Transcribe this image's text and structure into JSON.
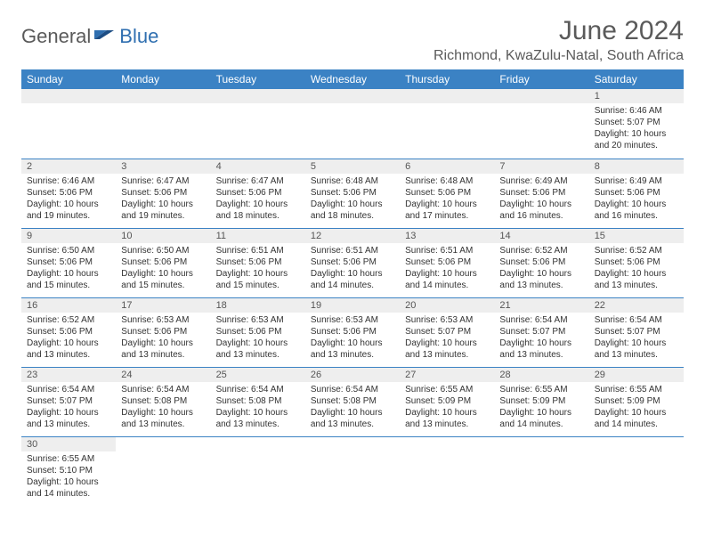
{
  "brand": {
    "part1": "General",
    "part2": "Blue"
  },
  "title": "June 2024",
  "location": "Richmond, KwaZulu-Natal, South Africa",
  "colors": {
    "header_bg": "#3b82c4",
    "header_fg": "#ffffff",
    "daynum_bg": "#eeeeee",
    "row_divider": "#3b82c4",
    "title_color": "#5a5a5a",
    "brand_gray": "#5a5a5a",
    "brand_blue": "#2f6fb0"
  },
  "typography": {
    "title_fontsize": 30,
    "location_fontsize": 16,
    "dayheader_fontsize": 12,
    "daynum_fontsize": 11,
    "body_fontsize": 10
  },
  "day_headers": [
    "Sunday",
    "Monday",
    "Tuesday",
    "Wednesday",
    "Thursday",
    "Friday",
    "Saturday"
  ],
  "weeks": [
    [
      null,
      null,
      null,
      null,
      null,
      null,
      {
        "n": "1",
        "sr": "Sunrise: 6:46 AM",
        "ss": "Sunset: 5:07 PM",
        "d1": "Daylight: 10 hours",
        "d2": "and 20 minutes."
      }
    ],
    [
      {
        "n": "2",
        "sr": "Sunrise: 6:46 AM",
        "ss": "Sunset: 5:06 PM",
        "d1": "Daylight: 10 hours",
        "d2": "and 19 minutes."
      },
      {
        "n": "3",
        "sr": "Sunrise: 6:47 AM",
        "ss": "Sunset: 5:06 PM",
        "d1": "Daylight: 10 hours",
        "d2": "and 19 minutes."
      },
      {
        "n": "4",
        "sr": "Sunrise: 6:47 AM",
        "ss": "Sunset: 5:06 PM",
        "d1": "Daylight: 10 hours",
        "d2": "and 18 minutes."
      },
      {
        "n": "5",
        "sr": "Sunrise: 6:48 AM",
        "ss": "Sunset: 5:06 PM",
        "d1": "Daylight: 10 hours",
        "d2": "and 18 minutes."
      },
      {
        "n": "6",
        "sr": "Sunrise: 6:48 AM",
        "ss": "Sunset: 5:06 PM",
        "d1": "Daylight: 10 hours",
        "d2": "and 17 minutes."
      },
      {
        "n": "7",
        "sr": "Sunrise: 6:49 AM",
        "ss": "Sunset: 5:06 PM",
        "d1": "Daylight: 10 hours",
        "d2": "and 16 minutes."
      },
      {
        "n": "8",
        "sr": "Sunrise: 6:49 AM",
        "ss": "Sunset: 5:06 PM",
        "d1": "Daylight: 10 hours",
        "d2": "and 16 minutes."
      }
    ],
    [
      {
        "n": "9",
        "sr": "Sunrise: 6:50 AM",
        "ss": "Sunset: 5:06 PM",
        "d1": "Daylight: 10 hours",
        "d2": "and 15 minutes."
      },
      {
        "n": "10",
        "sr": "Sunrise: 6:50 AM",
        "ss": "Sunset: 5:06 PM",
        "d1": "Daylight: 10 hours",
        "d2": "and 15 minutes."
      },
      {
        "n": "11",
        "sr": "Sunrise: 6:51 AM",
        "ss": "Sunset: 5:06 PM",
        "d1": "Daylight: 10 hours",
        "d2": "and 15 minutes."
      },
      {
        "n": "12",
        "sr": "Sunrise: 6:51 AM",
        "ss": "Sunset: 5:06 PM",
        "d1": "Daylight: 10 hours",
        "d2": "and 14 minutes."
      },
      {
        "n": "13",
        "sr": "Sunrise: 6:51 AM",
        "ss": "Sunset: 5:06 PM",
        "d1": "Daylight: 10 hours",
        "d2": "and 14 minutes."
      },
      {
        "n": "14",
        "sr": "Sunrise: 6:52 AM",
        "ss": "Sunset: 5:06 PM",
        "d1": "Daylight: 10 hours",
        "d2": "and 13 minutes."
      },
      {
        "n": "15",
        "sr": "Sunrise: 6:52 AM",
        "ss": "Sunset: 5:06 PM",
        "d1": "Daylight: 10 hours",
        "d2": "and 13 minutes."
      }
    ],
    [
      {
        "n": "16",
        "sr": "Sunrise: 6:52 AM",
        "ss": "Sunset: 5:06 PM",
        "d1": "Daylight: 10 hours",
        "d2": "and 13 minutes."
      },
      {
        "n": "17",
        "sr": "Sunrise: 6:53 AM",
        "ss": "Sunset: 5:06 PM",
        "d1": "Daylight: 10 hours",
        "d2": "and 13 minutes."
      },
      {
        "n": "18",
        "sr": "Sunrise: 6:53 AM",
        "ss": "Sunset: 5:06 PM",
        "d1": "Daylight: 10 hours",
        "d2": "and 13 minutes."
      },
      {
        "n": "19",
        "sr": "Sunrise: 6:53 AM",
        "ss": "Sunset: 5:06 PM",
        "d1": "Daylight: 10 hours",
        "d2": "and 13 minutes."
      },
      {
        "n": "20",
        "sr": "Sunrise: 6:53 AM",
        "ss": "Sunset: 5:07 PM",
        "d1": "Daylight: 10 hours",
        "d2": "and 13 minutes."
      },
      {
        "n": "21",
        "sr": "Sunrise: 6:54 AM",
        "ss": "Sunset: 5:07 PM",
        "d1": "Daylight: 10 hours",
        "d2": "and 13 minutes."
      },
      {
        "n": "22",
        "sr": "Sunrise: 6:54 AM",
        "ss": "Sunset: 5:07 PM",
        "d1": "Daylight: 10 hours",
        "d2": "and 13 minutes."
      }
    ],
    [
      {
        "n": "23",
        "sr": "Sunrise: 6:54 AM",
        "ss": "Sunset: 5:07 PM",
        "d1": "Daylight: 10 hours",
        "d2": "and 13 minutes."
      },
      {
        "n": "24",
        "sr": "Sunrise: 6:54 AM",
        "ss": "Sunset: 5:08 PM",
        "d1": "Daylight: 10 hours",
        "d2": "and 13 minutes."
      },
      {
        "n": "25",
        "sr": "Sunrise: 6:54 AM",
        "ss": "Sunset: 5:08 PM",
        "d1": "Daylight: 10 hours",
        "d2": "and 13 minutes."
      },
      {
        "n": "26",
        "sr": "Sunrise: 6:54 AM",
        "ss": "Sunset: 5:08 PM",
        "d1": "Daylight: 10 hours",
        "d2": "and 13 minutes."
      },
      {
        "n": "27",
        "sr": "Sunrise: 6:55 AM",
        "ss": "Sunset: 5:09 PM",
        "d1": "Daylight: 10 hours",
        "d2": "and 13 minutes."
      },
      {
        "n": "28",
        "sr": "Sunrise: 6:55 AM",
        "ss": "Sunset: 5:09 PM",
        "d1": "Daylight: 10 hours",
        "d2": "and 14 minutes."
      },
      {
        "n": "29",
        "sr": "Sunrise: 6:55 AM",
        "ss": "Sunset: 5:09 PM",
        "d1": "Daylight: 10 hours",
        "d2": "and 14 minutes."
      }
    ],
    [
      {
        "n": "30",
        "sr": "Sunrise: 6:55 AM",
        "ss": "Sunset: 5:10 PM",
        "d1": "Daylight: 10 hours",
        "d2": "and 14 minutes."
      },
      null,
      null,
      null,
      null,
      null,
      null
    ]
  ]
}
